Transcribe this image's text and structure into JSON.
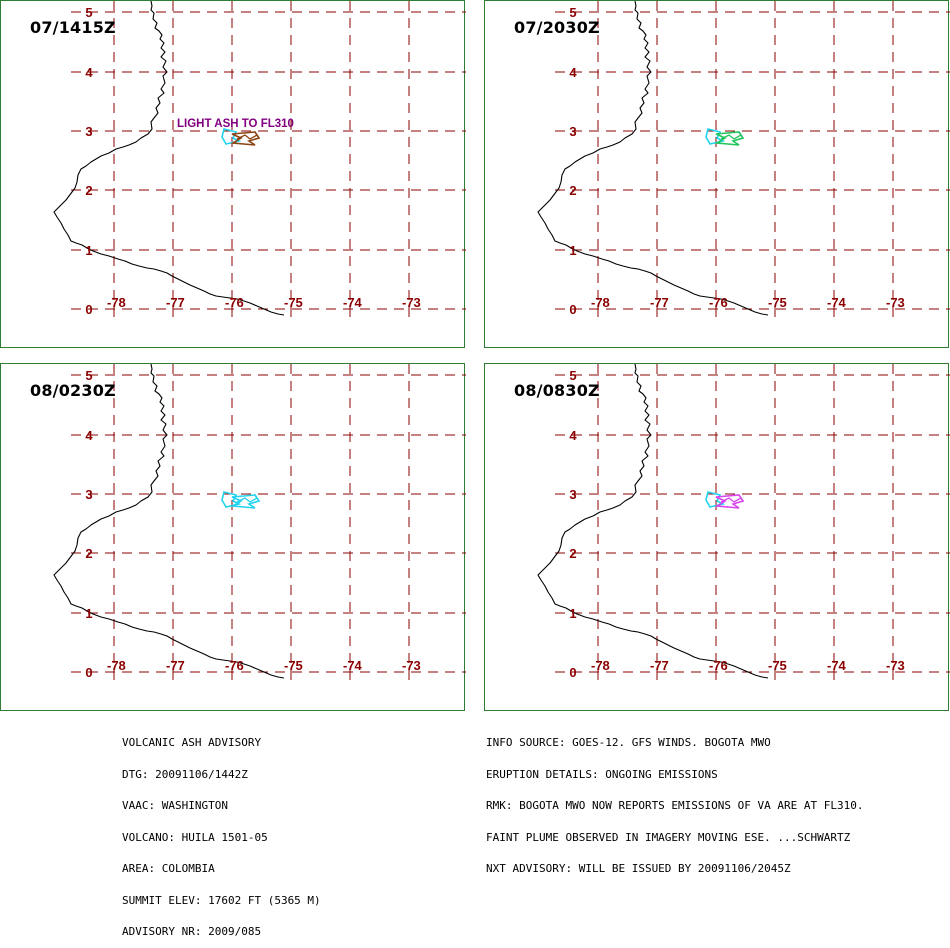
{
  "panels": [
    {
      "time": "07/1415Z",
      "annotation": "LIGHT ASH TO FL310",
      "forecast_color": "#8b4513"
    },
    {
      "time": "07/2030Z",
      "annotation": "",
      "forecast_color": "#22c55e"
    },
    {
      "time": "08/0230Z",
      "annotation": "",
      "forecast_color": "#22d3ee"
    },
    {
      "time": "08/0830Z",
      "annotation": "",
      "forecast_color": "#d946ef"
    }
  ],
  "axes": {
    "lon_labels": [
      "-78",
      "-77",
      "-76",
      "-75",
      "-74",
      "-73"
    ],
    "lat_labels": [
      "0",
      "1",
      "2",
      "3",
      "4",
      "5"
    ]
  },
  "colors": {
    "grid": "#8b0000",
    "border": "#2e7d32",
    "observed_ash": "#22d3ee",
    "annotation": "#800080",
    "coast": "#000000"
  },
  "advisory": {
    "lines": [
      "VOLCANIC ASH ADVISORY",
      "DTG: 20091106/1442Z",
      "VAAC: WASHINGTON",
      "VOLCANO: HUILA 1501-05",
      "AREA: COLOMBIA",
      "SUMMIT ELEV: 17602 FT (5365 M)",
      "ADVISORY NR: 2009/085"
    ]
  },
  "info": {
    "lines": [
      "INFO SOURCE: GOES-12. GFS WINDS. BOGOTA MWO",
      "ERUPTION DETAILS: ONGOING EMISSIONS",
      "RMK: BOGOTA MWO NOW REPORTS EMISSIONS OF VA ARE AT FL310.",
      "FAINT PLUME OBSERVED IN IMAGERY MOVING ESE. ...SCHWARTZ",
      "NXT ADVISORY: WILL BE ISSUED BY 20091106/2045Z"
    ]
  }
}
